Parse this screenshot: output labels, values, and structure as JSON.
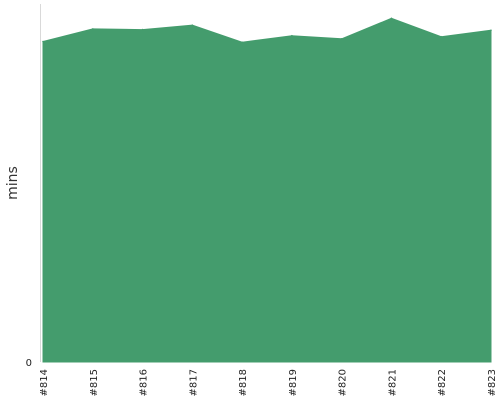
{
  "chart_data": {
    "type": "area",
    "title": "",
    "xlabel": "",
    "ylabel": "mins",
    "categories": [
      "#814",
      "#815",
      "#816",
      "#817",
      "#818",
      "#819",
      "#820",
      "#821",
      "#822",
      "#823"
    ],
    "series": [
      {
        "values": [
          94,
          97.7,
          97.5,
          98.8,
          93.8,
          95.7,
          94.8,
          100.8,
          95.4,
          97.3
        ],
        "color": "#449C6D"
      }
    ],
    "y_tick_labels": [
      "0"
    ],
    "ylim": [
      0,
      105
    ],
    "grid": false,
    "legend": "none"
  }
}
